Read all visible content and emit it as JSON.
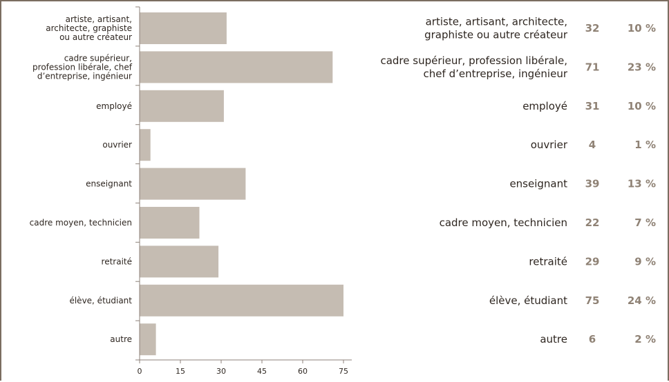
{
  "colors": {
    "bar": "#c5bcb2",
    "axis": "#8c8178",
    "text": "#2e2620",
    "accent": "#8f8275",
    "frame": "#7b6d60"
  },
  "chart_data": {
    "type": "bar",
    "orientation": "horizontal",
    "categories": [
      "artiste, artisant, architecte, graphiste ou autre créateur",
      "cadre supérieur, profession libérale, chef d’entreprise, ingénieur",
      "employé",
      "ouvrier",
      "enseignant",
      "cadre moyen, technicien",
      "retraité",
      "élève, étudiant",
      "autre"
    ],
    "axis_labels": [
      [
        "artiste, artisant,",
        "architecte, graphiste",
        "ou autre créateur"
      ],
      [
        "cadre supérieur,",
        "profession libérale, chef",
        "d’entreprise, ingénieur"
      ],
      [
        "employé"
      ],
      [
        "ouvrier"
      ],
      [
        "enseignant"
      ],
      [
        "cadre moyen, technicien"
      ],
      [
        "retraité"
      ],
      [
        "élève, étudiant"
      ],
      [
        "autre"
      ]
    ],
    "table_labels": [
      [
        "artiste, artisant, architecte,",
        "graphiste ou autre créateur"
      ],
      [
        "cadre supérieur, profession libérale,",
        "chef d’entreprise, ingénieur"
      ],
      [
        "employé"
      ],
      [
        "ouvrier"
      ],
      [
        "enseignant"
      ],
      [
        "cadre moyen, technicien"
      ],
      [
        "retraité"
      ],
      [
        "élève, étudiant"
      ],
      [
        "autre"
      ]
    ],
    "values": [
      32,
      71,
      31,
      4,
      39,
      22,
      29,
      75,
      6
    ],
    "percentages": [
      "10 %",
      "23 %",
      "10 %",
      "1 %",
      "13 %",
      "7 %",
      "9 %",
      "24 %",
      "2 %"
    ],
    "xticks": [
      0,
      15,
      30,
      45,
      60,
      75
    ],
    "xlim": [
      0,
      78
    ],
    "grid": false,
    "title": "",
    "xlabel": "",
    "ylabel": ""
  }
}
